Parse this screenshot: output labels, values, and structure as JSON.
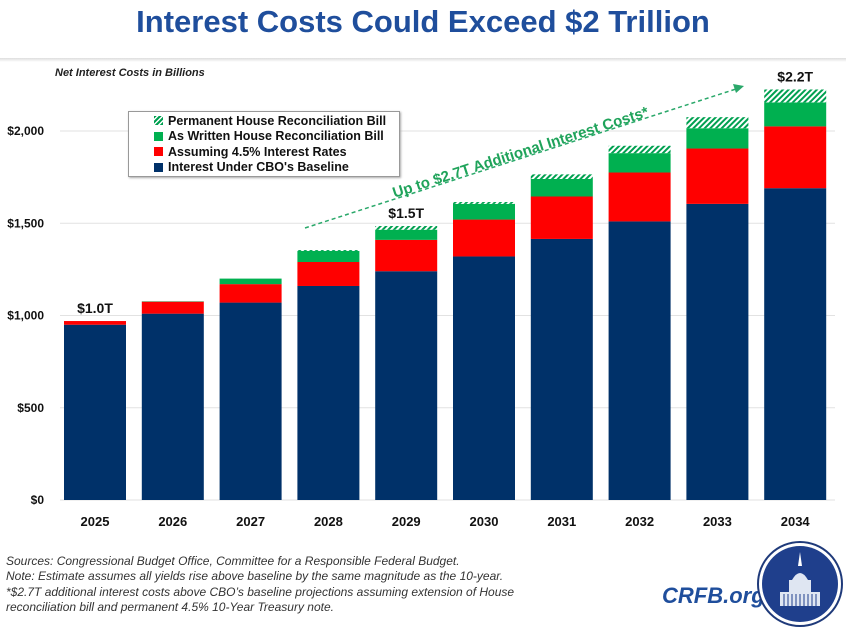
{
  "title": "Interest Costs Could Exceed $2 Trillion",
  "chart_data": {
    "type": "bar",
    "stacked": true,
    "ylabel": "Net Interest Costs in Billions",
    "ylim": [
      0,
      2200
    ],
    "yticks": [
      0,
      500,
      1000,
      1500,
      2000
    ],
    "ytick_labels": [
      "$0",
      "$500",
      "$1,000",
      "$1,500",
      "$2,000"
    ],
    "grid": true,
    "legend_position": "top-left",
    "categories": [
      "2025",
      "2026",
      "2027",
      "2028",
      "2029",
      "2030",
      "2031",
      "2032",
      "2033",
      "2034"
    ],
    "series": [
      {
        "name": "Interest Under CBO's Baseline",
        "color": "#003169",
        "values": [
          950,
          1010,
          1070,
          1160,
          1240,
          1320,
          1415,
          1510,
          1605,
          1690
        ]
      },
      {
        "name": "Assuming 4.5% Interest Rates",
        "color": "#ff0000",
        "values": [
          20,
          65,
          100,
          130,
          170,
          200,
          230,
          265,
          300,
          335
        ]
      },
      {
        "name": "As Written House Reconciliation Bill",
        "color": "#00b050",
        "values": [
          0,
          2,
          30,
          60,
          55,
          85,
          95,
          105,
          110,
          130
        ]
      },
      {
        "name": "Permanent House Reconciliation Bill",
        "color": "#00b050",
        "pattern": "hatched",
        "values": [
          0,
          0,
          0,
          5,
          20,
          10,
          25,
          40,
          60,
          70
        ]
      }
    ],
    "data_labels": [
      {
        "category": "2025",
        "text": "$1.0T"
      },
      {
        "category": "2029",
        "text": "$1.5T"
      },
      {
        "category": "2034",
        "text": "$2.2T"
      }
    ],
    "annotation": "Up to $2.7T Additional Interest Costs*"
  },
  "footer": {
    "lines": [
      "Sources: Congressional Budget Office, Committee for a Responsible Federal Budget.",
      "Note: Estimate assumes all yields rise above baseline by the same magnitude as the 10-year.",
      "*$2.7T additional interest costs above CBO’s baseline projections assuming extension of House",
      "reconciliation bill and permanent 4.5% 10-Year Treasury note."
    ]
  },
  "brand": "CRFB.org"
}
